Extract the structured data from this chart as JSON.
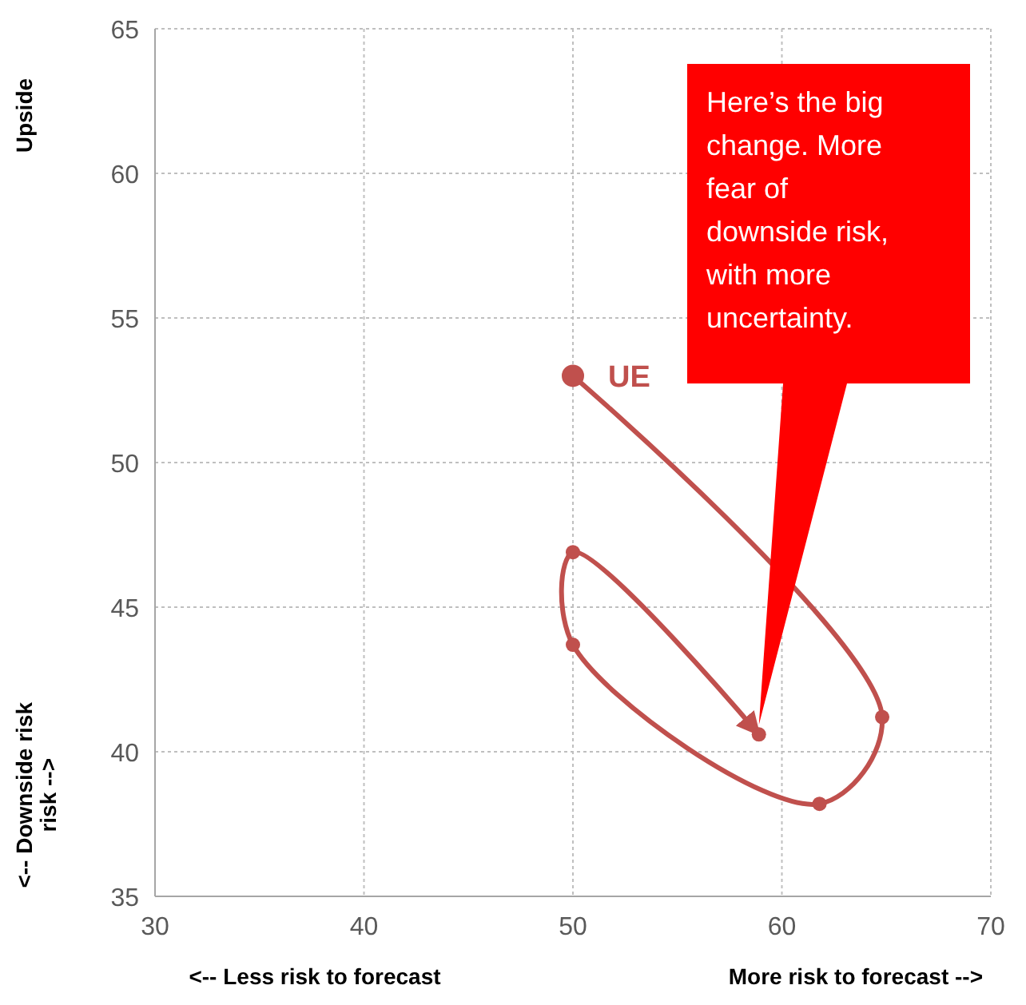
{
  "chart_data": {
    "type": "line",
    "xlabel": "<-- Less risk to forecast",
    "ylabel": "<-- Downside risk risk -->",
    "annotations": [
      "Upside",
      "More risk to forecast -->",
      "Here’s the big change. More fear of downside risk, with more uncertainty."
    ],
    "series": [
      {
        "name": "UE",
        "color": "#c0504d",
        "x": [
          50,
          64.8,
          61.8,
          50,
          50,
          58.9
        ],
        "values": [
          53,
          41.2,
          38.2,
          43.7,
          46.9,
          40.6
        ]
      }
    ],
    "xlim": [
      30,
      70
    ],
    "xticks": [
      30,
      40,
      50,
      60,
      70
    ],
    "ylim": [
      35,
      65
    ],
    "yticks": [
      35,
      40,
      45,
      50,
      55,
      60,
      65
    ],
    "grid": true,
    "marker": "circle",
    "line_style": "solid"
  }
}
